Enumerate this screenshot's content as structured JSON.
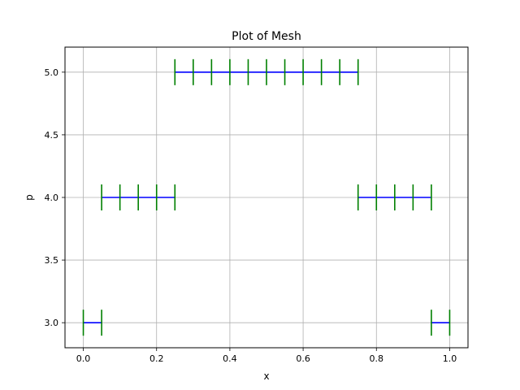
{
  "chart_data": {
    "type": "line",
    "title": "Plot of Mesh",
    "xlabel": "x",
    "ylabel": "p",
    "xlim": [
      -0.05,
      1.05
    ],
    "ylim": [
      2.8,
      5.2
    ],
    "grid": true,
    "xticks": [
      0.0,
      0.2,
      0.4,
      0.6,
      0.8,
      1.0
    ],
    "xtick_labels": [
      "0.0",
      "0.2",
      "0.4",
      "0.6",
      "0.8",
      "1.0"
    ],
    "yticks": [
      3.0,
      3.5,
      4.0,
      4.5,
      5.0
    ],
    "ytick_labels": [
      "3.0",
      "3.5",
      "4.0",
      "4.5",
      "5.0"
    ],
    "line_color": "#0000ff",
    "node_color": "#008000",
    "segments": [
      {
        "p": 3.0,
        "nodes": [
          0.0,
          0.05
        ]
      },
      {
        "p": 4.0,
        "nodes": [
          0.05,
          0.1,
          0.15,
          0.2,
          0.25
        ]
      },
      {
        "p": 5.0,
        "nodes": [
          0.25,
          0.3,
          0.35,
          0.4,
          0.45,
          0.5,
          0.55,
          0.6,
          0.65,
          0.7,
          0.75
        ]
      },
      {
        "p": 4.0,
        "nodes": [
          0.75,
          0.8,
          0.85,
          0.9,
          0.95
        ]
      },
      {
        "p": 3.0,
        "nodes": [
          0.95,
          1.0
        ]
      }
    ]
  }
}
